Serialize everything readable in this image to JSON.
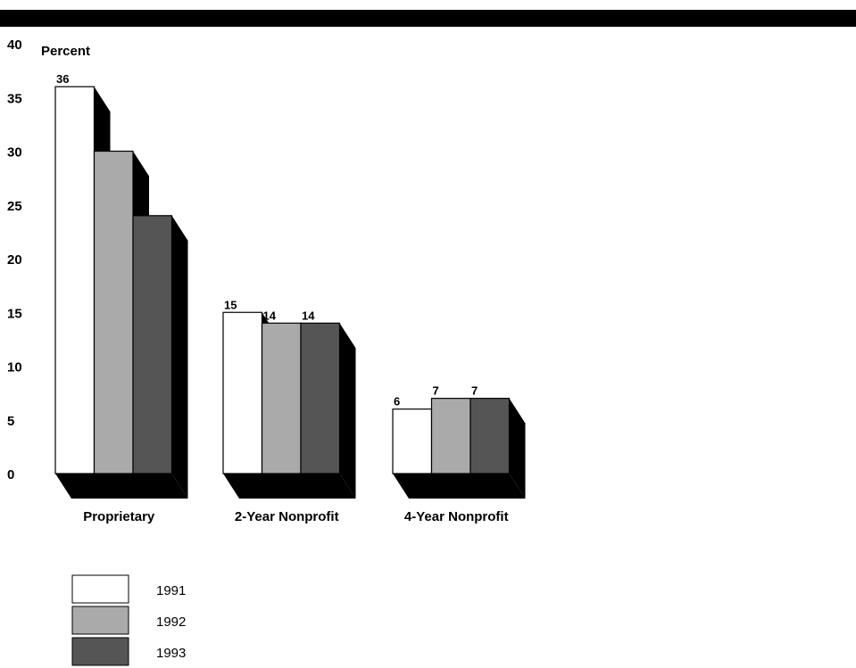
{
  "chart_data": {
    "type": "bar",
    "ylabel": "Percent",
    "ylim": [
      0,
      40
    ],
    "yticks": [
      0,
      5,
      10,
      15,
      20,
      25,
      30,
      35,
      40
    ],
    "categories": [
      "Proprietary",
      "2-Year Nonprofit",
      "4-Year Nonprofit"
    ],
    "series": [
      {
        "name": "1991",
        "values": [
          36,
          15,
          6
        ],
        "color": "#ffffff"
      },
      {
        "name": "1992",
        "values": [
          30,
          14,
          7
        ],
        "color": "#aaaaaa"
      },
      {
        "name": "1993",
        "values": [
          24,
          14,
          7
        ],
        "color": "#555555"
      }
    ],
    "value_labels": [
      [
        "36",
        "15",
        "6"
      ],
      [
        "30",
        "14",
        "7"
      ],
      [
        "24",
        "14",
        "7"
      ]
    ],
    "legend_position": "bottom-left",
    "style": "3d-shadow",
    "shadow_color": "#000000"
  }
}
